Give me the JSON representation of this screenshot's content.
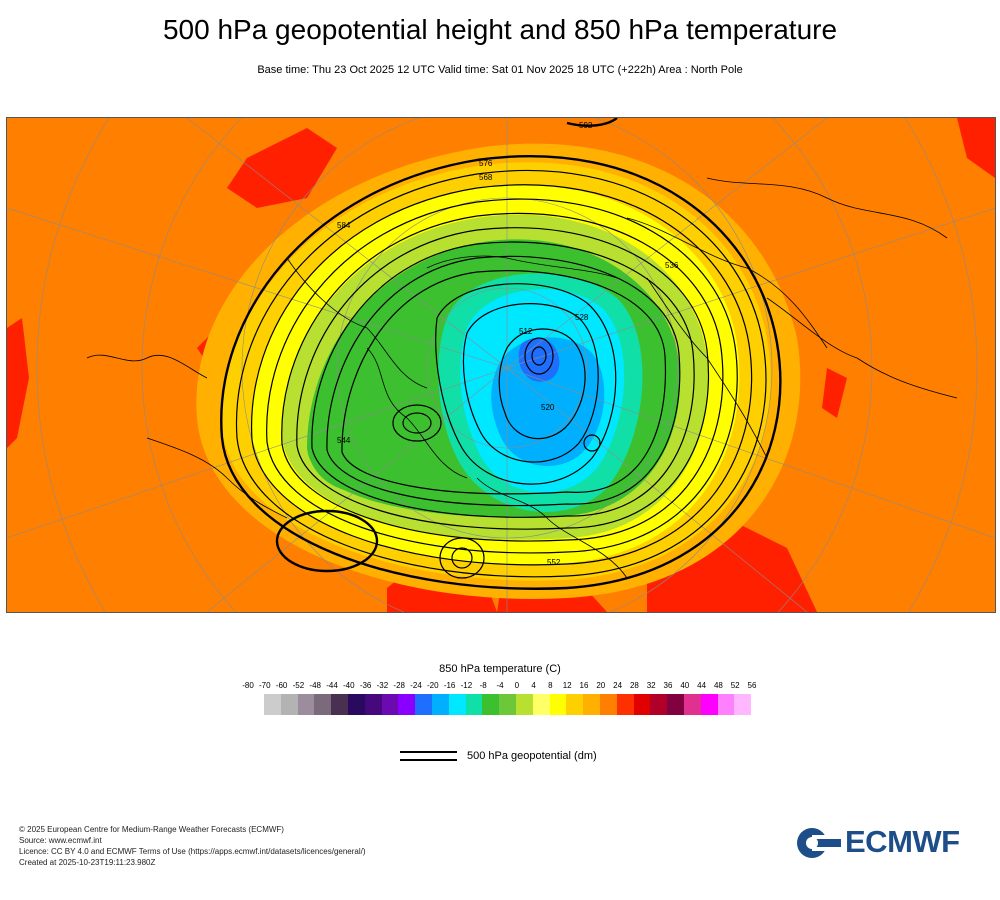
{
  "header": {
    "title": "500 hPa geopotential height and 850 hPa temperature",
    "subtitle": "Base time: Thu 23 Oct 2025 12 UTC Valid time: Sat 01 Nov 2025 18 UTC (+222h) Area : North Pole"
  },
  "map": {
    "projection": "polar stereographic",
    "area": "North Pole",
    "contour_labels": [
      "592",
      "576",
      "568",
      "584",
      "512",
      "528",
      "520",
      "552",
      "544",
      "536"
    ]
  },
  "legend": {
    "temperature_title": "850 hPa temperature (C)",
    "temperature_ticks": [
      "-80",
      "-70",
      "-60",
      "-52",
      "-48",
      "-44",
      "-40",
      "-36",
      "-32",
      "-28",
      "-24",
      "-20",
      "-16",
      "-12",
      "-8",
      "-4",
      "0",
      "4",
      "8",
      "12",
      "16",
      "20",
      "24",
      "28",
      "32",
      "36",
      "40",
      "44",
      "48",
      "52",
      "56"
    ],
    "temperature_colors": [
      "#e6e6e6",
      "#cccccc",
      "#b3b3b3",
      "#9b8d9b",
      "#7b6a7b",
      "#4a3050",
      "#2a0a5e",
      "#46087d",
      "#6a0ab0",
      "#8a00ff",
      "#1f6fff",
      "#00b0ff",
      "#00e8ff",
      "#10e0a8",
      "#3cc030",
      "#6cc838",
      "#b8e030",
      "#ffff66",
      "#ffff00",
      "#ffd000",
      "#ffb000",
      "#ff8000",
      "#ff3000",
      "#e00000",
      "#b0002a",
      "#800040",
      "#e03090",
      "#ff00ff",
      "#ff80ff",
      "#ffb8ff",
      "#e0c0e0",
      "#e8e8e8"
    ],
    "geopotential_label": "500 hPa geopotential (dm)"
  },
  "footer": {
    "lines": [
      "© 2025 European Centre for Medium-Range Weather Forecasts (ECMWF)",
      "Source: www.ecmwf.int",
      "Licence: CC BY 4.0 and ECMWF Terms of Use (https://apps.ecmwf.int/datasets/licences/general/)",
      "Created at 2025-10-23T19:11:23.980Z"
    ],
    "logo_text": "ECMWF",
    "logo_color": "#1d4e89"
  }
}
